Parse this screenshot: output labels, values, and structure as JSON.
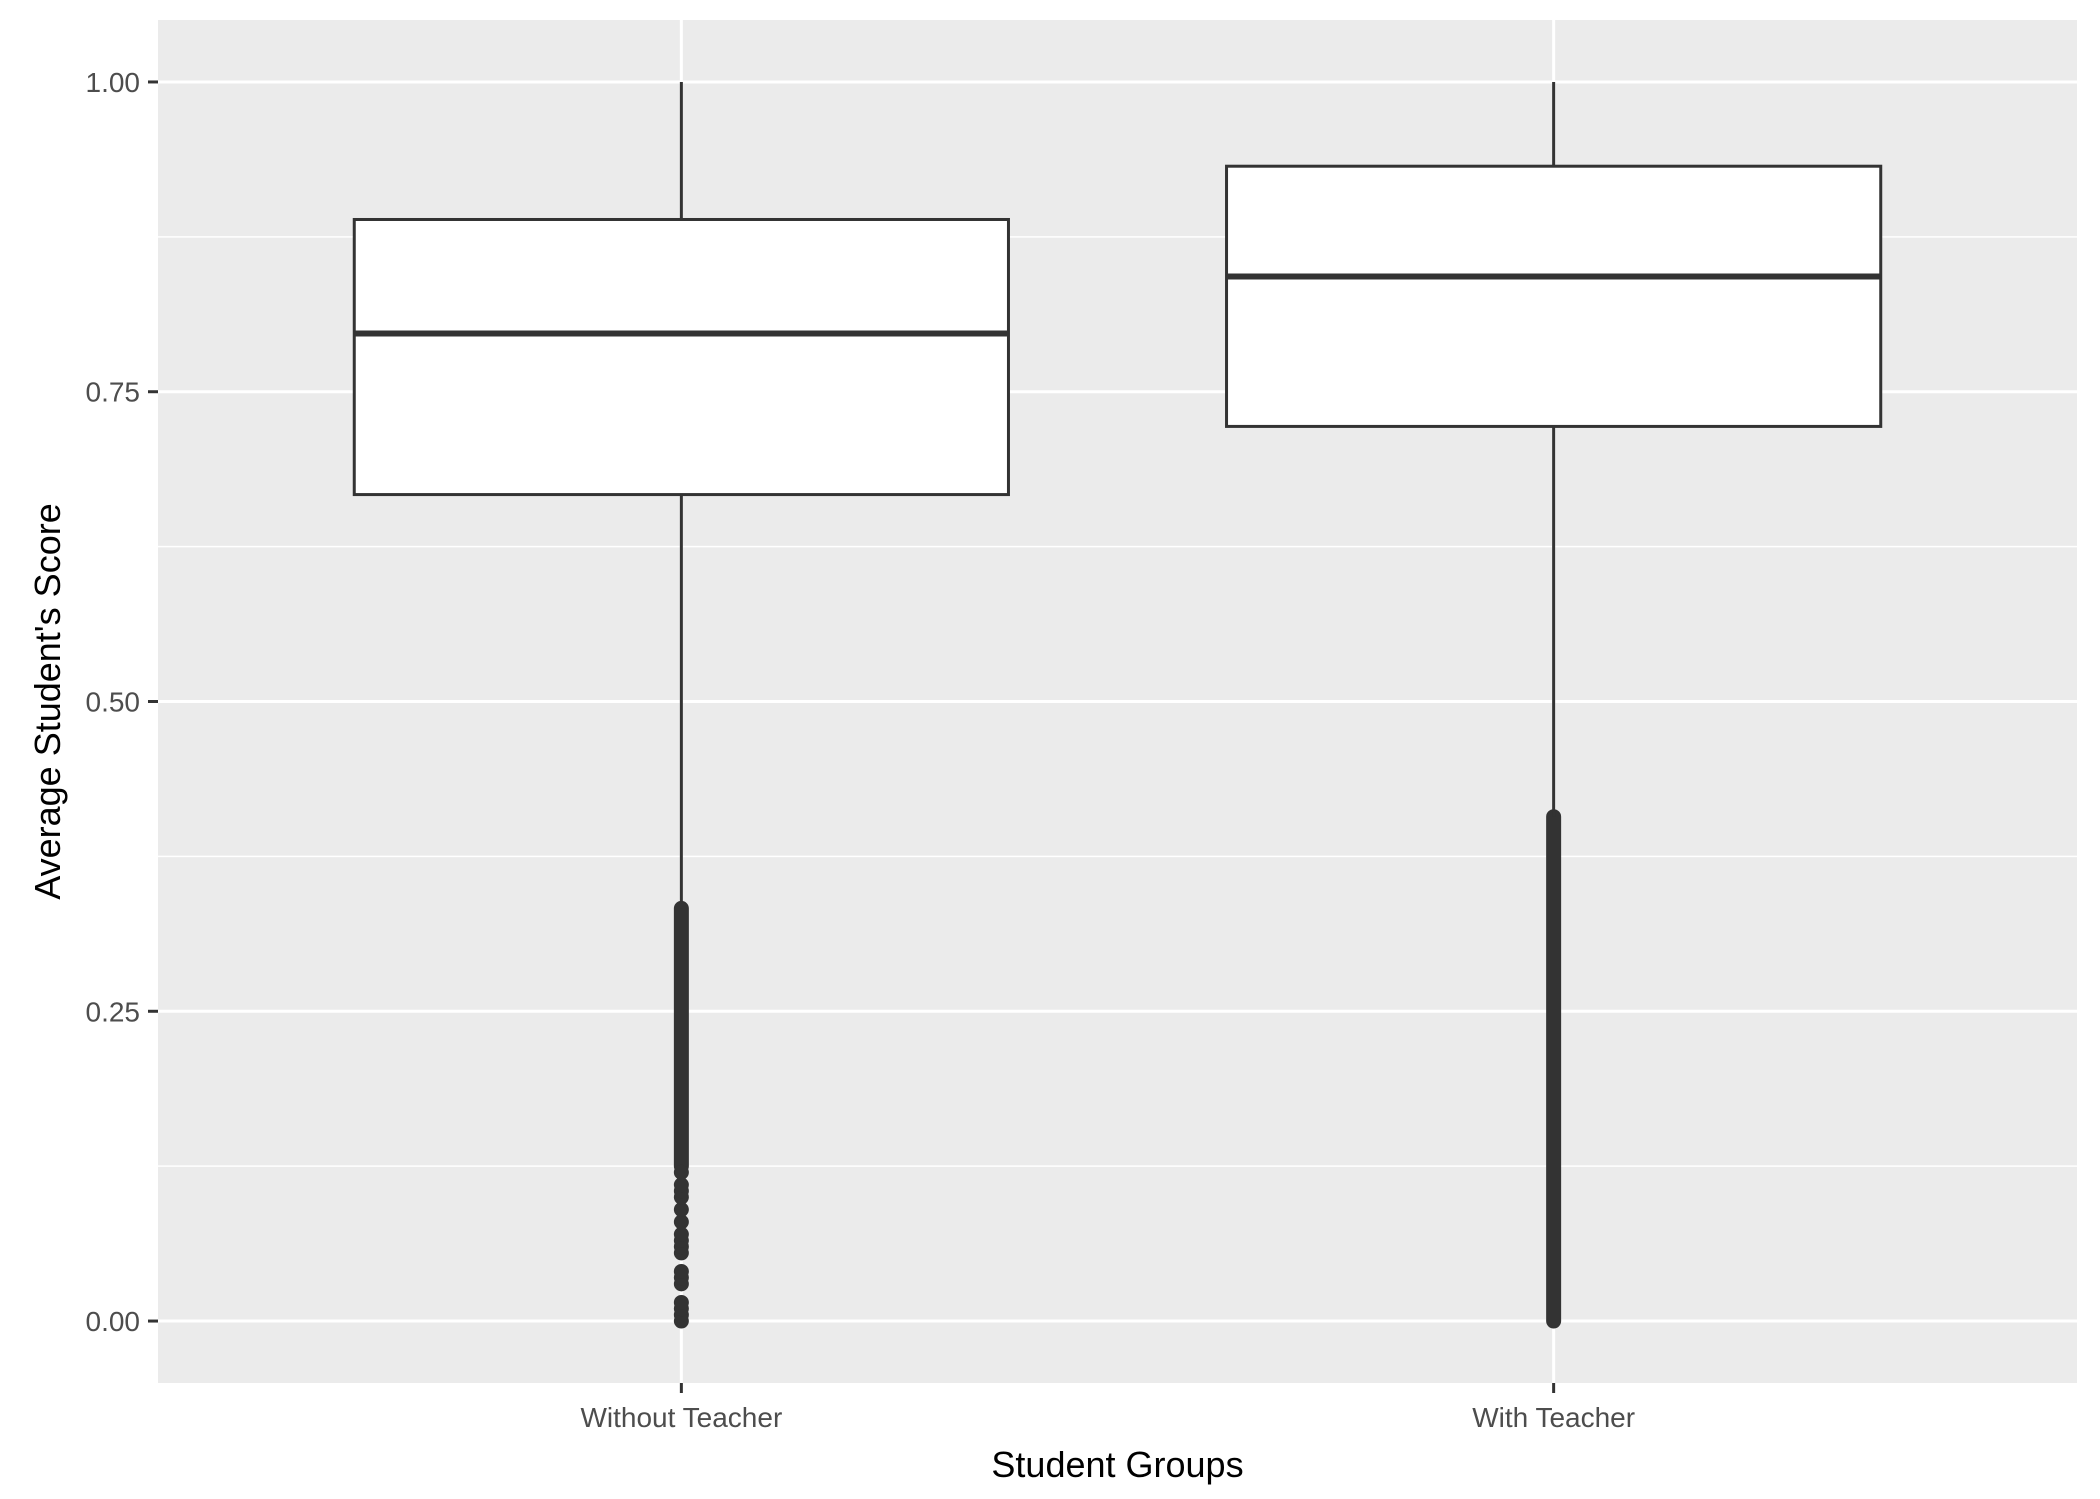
{
  "chart_data": {
    "type": "boxplot",
    "xlabel": "Student Groups",
    "ylabel": "Average Student's Score",
    "ylim": [
      -0.05,
      1.05
    ],
    "y_ticks": [
      0.0,
      0.25,
      0.5,
      0.75,
      1.0
    ],
    "y_tick_labels": [
      "0.00",
      "0.25",
      "0.50",
      "0.75",
      "1.00"
    ],
    "y_minor_ticks": [
      0.125,
      0.375,
      0.625,
      0.875
    ],
    "categories": [
      "Without Teacher",
      "With Teacher"
    ],
    "boxes": [
      {
        "category": "Without Teacher",
        "whisker_low": 0.667,
        "q1": 0.667,
        "median": 0.797,
        "q3": 0.889,
        "whisker_high": 1.0,
        "outliers": {
          "dense_ranges": [
            [
              0.125,
              0.333
            ]
          ],
          "points": [
            0.0,
            0.005,
            0.01,
            0.015,
            0.03,
            0.035,
            0.04,
            0.055,
            0.06,
            0.065,
            0.07,
            0.08,
            0.09,
            0.1,
            0.105,
            0.11,
            0.12
          ]
        }
      },
      {
        "category": "With Teacher",
        "whisker_low": 0.722,
        "q1": 0.722,
        "median": 0.843,
        "q3": 0.932,
        "whisker_high": 1.0,
        "outliers": {
          "dense_ranges": [
            [
              0.0,
              0.407
            ]
          ],
          "points": []
        }
      }
    ],
    "grid": true,
    "colors": {
      "panel": "#ebebeb",
      "grid": "#ffffff",
      "box_fill": "#ffffff",
      "line": "#333333"
    }
  }
}
